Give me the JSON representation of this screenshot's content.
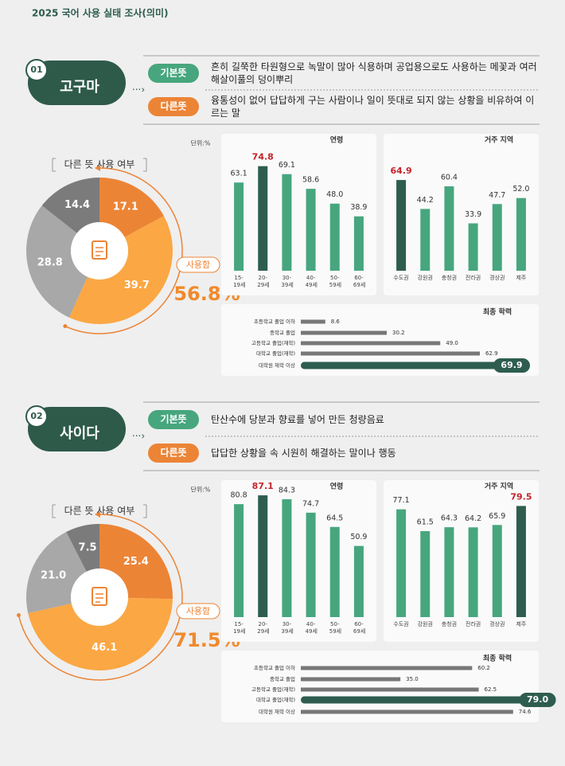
{
  "title": "2025 국어 사용 실태 조사(의미)",
  "sections": [
    {
      "number": "01",
      "word": "고구마",
      "meanings": [
        {
          "label": "기본뜻",
          "text": "흔히 길쭉한 타원형으로 녹말이 많아 식용하며 공업용으로도 사용하는 메꽃과 여러해살이풀의 덩이뿌리"
        },
        {
          "label": "다른뜻",
          "text": "융통성이 없어 답답하게 구는 사람이나 일이 뜻대로 되지 않는 상황을 비유하여 이르는 말"
        }
      ],
      "unit": "단위:%",
      "chart_data": [
        {
          "type": "pie",
          "title": "다른 뜻 사용 여부",
          "values": [
            17.1,
            39.7,
            28.8,
            14.4
          ],
          "value_labels": [
            "17.1",
            "39.7",
            "28.8",
            "14.4"
          ],
          "colors": [
            "#ec8436",
            "#fba744",
            "#a8a8a8",
            "#7b7b7b"
          ],
          "used_label": "사용함",
          "used_total": 56.8,
          "used_total_label": "56.8%"
        },
        {
          "type": "bar",
          "title": "연령",
          "categories": [
            "15-19세",
            "20-29세",
            "30-39세",
            "40-49세",
            "50-59세",
            "60-69세"
          ],
          "values": [
            63.1,
            74.8,
            69.1,
            58.6,
            48.0,
            38.9
          ],
          "value_labels": [
            "63.1",
            "74.8",
            "69.1",
            "58.6",
            "48.0",
            "38.9"
          ],
          "colors": [
            "#47a67e",
            "#2e5d4f",
            "#47a67e",
            "#47a67e",
            "#47a67e",
            "#47a67e"
          ],
          "highlight_color": "#2e5d4f",
          "highlight_label_color": "#c4242b",
          "ylim": [
            0,
            90
          ]
        },
        {
          "type": "bar",
          "title": "거주 지역",
          "categories": [
            "수도권",
            "강원권",
            "충청권",
            "전라권",
            "경상권",
            "제주"
          ],
          "values": [
            64.9,
            44.2,
            60.4,
            33.9,
            47.7,
            52.0
          ],
          "value_labels": [
            "64.9",
            "44.2",
            "60.4",
            "33.9",
            "47.7",
            "52.0"
          ],
          "colors": [
            "#2e5d4f",
            "#47a67e",
            "#47a67e",
            "#47a67e",
            "#47a67e",
            "#47a67e"
          ],
          "highlight_color": "#2e5d4f",
          "highlight_label_color": "#c4242b",
          "ylim": [
            0,
            90
          ]
        },
        {
          "type": "hbar",
          "title": "최종 학력",
          "categories": [
            "초등학교 졸업 이하",
            "중학교 졸업",
            "고등학교 졸업(재학)",
            "대학교 졸업(재학)",
            "대학원 재학 이상"
          ],
          "values": [
            8.6,
            30.2,
            49.0,
            62.9,
            69.9
          ],
          "value_labels": [
            "8.6",
            "30.2",
            "49.0",
            "62.9",
            "69.9"
          ],
          "colors": [
            "#777777",
            "#777777",
            "#777777",
            "#777777",
            "#2e5d4f"
          ],
          "highlight_color": "#2e5d4f",
          "xlim": [
            0,
            85
          ]
        }
      ]
    },
    {
      "number": "02",
      "word": "사이다",
      "meanings": [
        {
          "label": "기본뜻",
          "text": "탄산수에 당분과 향료를 넣어 만든 청량음료"
        },
        {
          "label": "다른뜻",
          "text": "답답한 상황을 속 시원히 해결하는 말이나 행동"
        }
      ],
      "unit": "단위:%",
      "chart_data": [
        {
          "type": "pie",
          "title": "다른 뜻 사용 여부",
          "values": [
            25.4,
            46.1,
            21.0,
            7.5
          ],
          "value_labels": [
            "25.4",
            "46.1",
            "21.0",
            "7.5"
          ],
          "colors": [
            "#ec8436",
            "#fba744",
            "#a8a8a8",
            "#7b7b7b"
          ],
          "used_label": "사용함",
          "used_total": 71.5,
          "used_total_label": "71.5%"
        },
        {
          "type": "bar",
          "title": "연령",
          "categories": [
            "15-19세",
            "20-29세",
            "30-39세",
            "40-49세",
            "50-59세",
            "60-69세"
          ],
          "values": [
            80.8,
            87.1,
            84.3,
            74.7,
            64.5,
            50.9
          ],
          "value_labels": [
            "80.8",
            "87.1",
            "84.3",
            "74.7",
            "64.5",
            "50.9"
          ],
          "colors": [
            "#47a67e",
            "#2e5d4f",
            "#47a67e",
            "#47a67e",
            "#47a67e",
            "#47a67e"
          ],
          "highlight_color": "#2e5d4f",
          "highlight_label_color": "#c4242b",
          "ylim": [
            0,
            90
          ]
        },
        {
          "type": "bar",
          "title": "거주 지역",
          "categories": [
            "수도권",
            "강원권",
            "충청권",
            "전라권",
            "경상권",
            "제주"
          ],
          "values": [
            77.1,
            61.5,
            64.3,
            64.2,
            65.9,
            79.5
          ],
          "value_labels": [
            "77.1",
            "61.5",
            "64.3",
            "64.2",
            "65.9",
            "79.5"
          ],
          "colors": [
            "#47a67e",
            "#47a67e",
            "#47a67e",
            "#47a67e",
            "#47a67e",
            "#2e5d4f"
          ],
          "highlight_color": "#2e5d4f",
          "highlight_label_color": "#c4242b",
          "ylim": [
            0,
            90
          ]
        },
        {
          "type": "hbar",
          "title": "최종 학력",
          "categories": [
            "초등학교 졸업 이하",
            "중학교 졸업",
            "고등학교 졸업(재학)",
            "대학교 졸업(재학)",
            "대학원 재학 이상"
          ],
          "values": [
            60.2,
            35.0,
            62.5,
            79.0,
            74.6
          ],
          "value_labels": [
            "60.2",
            "35.0",
            "62.5",
            "79.0",
            "74.6"
          ],
          "colors": [
            "#777777",
            "#777777",
            "#777777",
            "#2e5d4f",
            "#777777"
          ],
          "highlight_color": "#2e5d4f",
          "xlim": [
            0,
            85
          ]
        }
      ]
    }
  ]
}
